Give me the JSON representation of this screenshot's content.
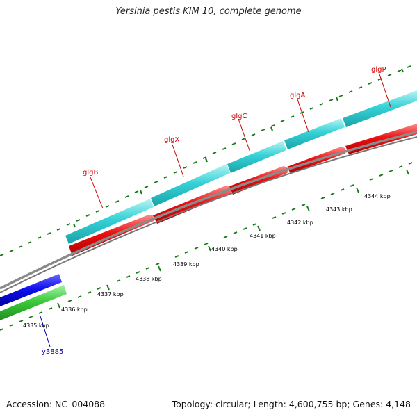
{
  "title": "Yersinia pestis KIM 10, complete genome",
  "footer": {
    "accession": "Accession: NC_004088",
    "stats": "Topology: circular; Length: 4,600,755 bp; Genes: 4,148"
  },
  "scale_labels": [
    "4335 kbp",
    "4336 kbp",
    "4337 kbp",
    "4338 kbp",
    "4339 kbp",
    "4340 kbp",
    "4341 kbp",
    "4342 kbp",
    "4343 kbp",
    "4344 kbp"
  ],
  "genes": [
    {
      "name": "glgB",
      "color": "#cc0000"
    },
    {
      "name": "glgX",
      "color": "#cc0000"
    },
    {
      "name": "glgC",
      "color": "#cc0000"
    },
    {
      "name": "glgA",
      "color": "#cc0000"
    },
    {
      "name": "glgP",
      "color": "#cc0000"
    },
    {
      "name": "y3885",
      "color": "#0000aa"
    }
  ],
  "colors": {
    "cog_track": "#2ec8cc",
    "cds_forward": "#ee0000",
    "cds_reverse": "#0000dd",
    "rna_track": "#33cc33",
    "backbone": "#888888",
    "ticks": "#1a7a1a"
  }
}
